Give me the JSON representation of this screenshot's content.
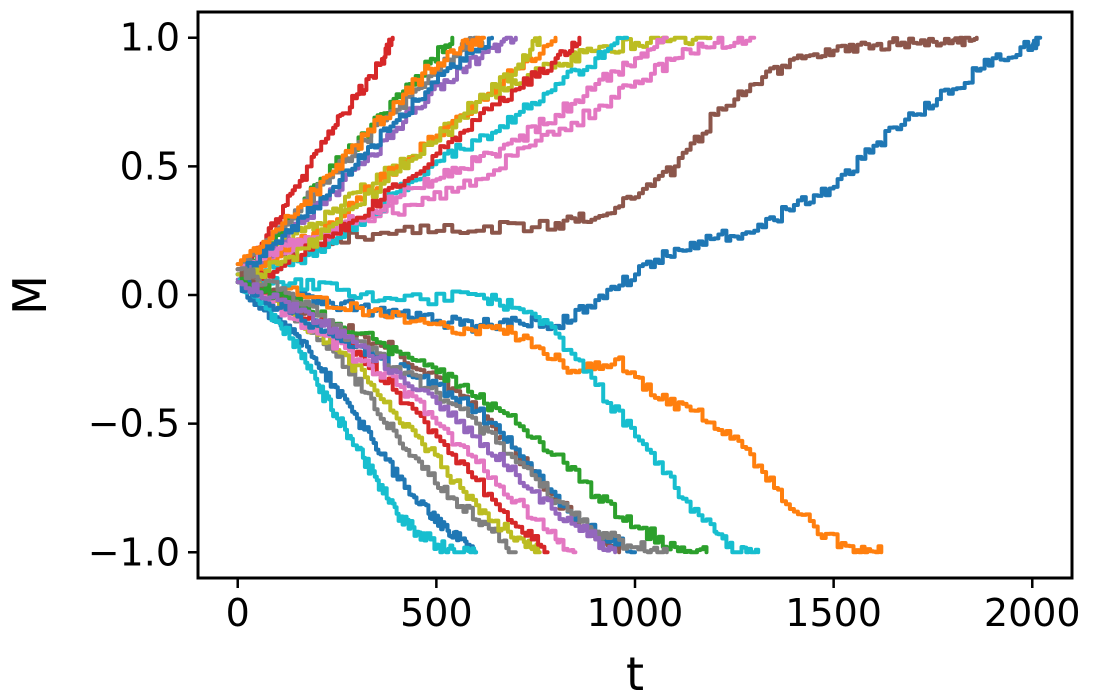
{
  "chart_data": {
    "type": "line",
    "title": "",
    "xlabel": "t",
    "ylabel": "M",
    "xlim": [
      -100,
      2100
    ],
    "ylim": [
      -1.1,
      1.1
    ],
    "xticks": [
      0,
      500,
      1000,
      1500,
      2000
    ],
    "xtick_labels": [
      "0",
      "500",
      "1000",
      "1500",
      "2000"
    ],
    "yticks": [
      -1.0,
      -0.5,
      0.0,
      0.5,
      1.0
    ],
    "ytick_labels": [
      "−1.0",
      "−0.5",
      "0.0",
      "0.5",
      "1.0"
    ],
    "grid": false,
    "legend": "none",
    "series": [
      {
        "color": "#1f77b4",
        "x": [
          0,
          100,
          200,
          300,
          400,
          500,
          600,
          700,
          800,
          900,
          1000,
          1100,
          1200,
          1300,
          1400,
          1500,
          1600,
          1700,
          1800,
          1900,
          2000,
          2020
        ],
        "y": [
          0.08,
          0.0,
          -0.02,
          -0.05,
          -0.08,
          -0.1,
          -0.12,
          -0.1,
          -0.12,
          -0.02,
          0.08,
          0.18,
          0.22,
          0.25,
          0.35,
          0.42,
          0.58,
          0.7,
          0.8,
          0.92,
          0.97,
          1.0
        ]
      },
      {
        "color": "#ff7f0e",
        "x": [
          0,
          150,
          300,
          450,
          550,
          650,
          750,
          850,
          950,
          1050,
          1150,
          1250,
          1350,
          1450,
          1550,
          1620
        ],
        "y": [
          0.05,
          0.0,
          -0.05,
          -0.1,
          -0.15,
          -0.12,
          -0.2,
          -0.3,
          -0.25,
          -0.4,
          -0.45,
          -0.55,
          -0.75,
          -0.9,
          -1.0,
          -1.0
        ]
      },
      {
        "color": "#8c564b",
        "x": [
          0,
          200,
          400,
          600,
          800,
          900,
          1000,
          1100,
          1200,
          1300,
          1400,
          1500,
          1600,
          1700,
          1800,
          1860
        ],
        "y": [
          0.1,
          0.2,
          0.25,
          0.25,
          0.28,
          0.3,
          0.38,
          0.5,
          0.7,
          0.82,
          0.92,
          0.95,
          0.97,
          0.98,
          0.99,
          1.0
        ]
      },
      {
        "color": "#17becf",
        "x": [
          0,
          100,
          250,
          400,
          600,
          700,
          800,
          900,
          1000,
          1100,
          1200,
          1250,
          1310
        ],
        "y": [
          0.05,
          0.05,
          0.02,
          -0.02,
          0.0,
          -0.05,
          -0.15,
          -0.35,
          -0.55,
          -0.75,
          -0.92,
          -1.0,
          -1.0
        ]
      },
      {
        "color": "#e377c2",
        "x": [
          0,
          150,
          300,
          450,
          600,
          750,
          900,
          1000,
          1100,
          1200,
          1300
        ],
        "y": [
          0.1,
          0.2,
          0.3,
          0.35,
          0.45,
          0.6,
          0.72,
          0.83,
          0.92,
          0.98,
          1.0
        ]
      },
      {
        "color": "#bcbd22",
        "x": [
          0,
          100,
          200,
          300,
          400,
          500,
          600,
          700,
          800,
          900,
          1000,
          1100,
          1190
        ],
        "y": [
          0.1,
          0.2,
          0.28,
          0.4,
          0.5,
          0.62,
          0.75,
          0.82,
          0.9,
          0.95,
          0.98,
          1.0,
          1.0
        ]
      },
      {
        "color": "#d62728",
        "x": [
          0,
          60,
          120,
          180,
          240,
          300,
          360,
          390
        ],
        "y": [
          0.05,
          0.2,
          0.35,
          0.5,
          0.65,
          0.78,
          0.9,
          1.0
        ]
      },
      {
        "color": "#2ca02c",
        "x": [
          0,
          80,
          160,
          240,
          320,
          400,
          480,
          540
        ],
        "y": [
          0.08,
          0.2,
          0.35,
          0.5,
          0.62,
          0.78,
          0.9,
          1.0
        ]
      },
      {
        "color": "#9467bd",
        "x": [
          0,
          80,
          160,
          240,
          320,
          400,
          480,
          560,
          640,
          700
        ],
        "y": [
          0.06,
          0.15,
          0.28,
          0.4,
          0.52,
          0.65,
          0.78,
          0.88,
          0.96,
          1.0
        ]
      },
      {
        "color": "#ff7f0e",
        "x": [
          0,
          100,
          200,
          300,
          400,
          500,
          600,
          700,
          800
        ],
        "y": [
          0.05,
          0.15,
          0.25,
          0.38,
          0.5,
          0.62,
          0.75,
          0.88,
          1.0
        ]
      },
      {
        "color": "#17becf",
        "x": [
          0,
          100,
          200,
          300,
          400,
          500,
          600,
          700,
          800,
          900,
          980
        ],
        "y": [
          0.05,
          0.1,
          0.18,
          0.28,
          0.4,
          0.52,
          0.6,
          0.7,
          0.82,
          0.92,
          1.0
        ]
      },
      {
        "color": "#e377c2",
        "x": [
          0,
          100,
          200,
          300,
          400,
          500,
          600,
          700,
          800,
          900,
          1000,
          1080
        ],
        "y": [
          0.1,
          0.18,
          0.22,
          0.3,
          0.38,
          0.45,
          0.52,
          0.6,
          0.7,
          0.82,
          0.92,
          1.0
        ]
      },
      {
        "color": "#7f7f7f",
        "x": [
          0,
          80,
          160,
          240,
          320,
          400,
          480,
          560,
          600
        ],
        "y": [
          0.12,
          0.22,
          0.35,
          0.48,
          0.6,
          0.72,
          0.85,
          0.95,
          1.0
        ]
      },
      {
        "color": "#1f77b4",
        "x": [
          0,
          80,
          160,
          240,
          320,
          400,
          480,
          560,
          640
        ],
        "y": [
          0.08,
          0.18,
          0.3,
          0.42,
          0.55,
          0.68,
          0.8,
          0.92,
          1.0
        ]
      },
      {
        "color": "#d62728",
        "x": [
          0,
          100,
          200,
          300,
          400,
          500,
          600,
          700,
          800,
          860
        ],
        "y": [
          0.05,
          0.1,
          0.2,
          0.3,
          0.42,
          0.55,
          0.68,
          0.8,
          0.92,
          1.0
        ]
      },
      {
        "color": "#bcbd22",
        "x": [
          0,
          100,
          200,
          300,
          400,
          500,
          600,
          700,
          760
        ],
        "y": [
          0.05,
          0.12,
          0.22,
          0.35,
          0.48,
          0.6,
          0.75,
          0.88,
          1.0
        ]
      },
      {
        "color": "#1f77b4",
        "x": [
          0,
          60,
          120,
          180,
          240,
          300,
          360,
          420,
          480,
          520,
          560,
          600
        ],
        "y": [
          0.05,
          -0.05,
          -0.12,
          -0.22,
          -0.35,
          -0.48,
          -0.62,
          -0.75,
          -0.85,
          -0.9,
          -0.95,
          -1.0
        ]
      },
      {
        "color": "#17becf",
        "x": [
          0,
          50,
          100,
          150,
          200,
          250,
          300,
          350,
          400,
          450,
          500,
          550,
          600
        ],
        "y": [
          0.05,
          -0.02,
          -0.1,
          -0.2,
          -0.35,
          -0.48,
          -0.6,
          -0.72,
          -0.85,
          -0.92,
          -0.97,
          -1.0,
          -1.0
        ]
      },
      {
        "color": "#7f7f7f",
        "x": [
          0,
          80,
          160,
          240,
          320,
          400,
          480,
          560,
          640,
          700
        ],
        "y": [
          0.1,
          0.0,
          -0.1,
          -0.22,
          -0.38,
          -0.55,
          -0.7,
          -0.82,
          -0.92,
          -1.0
        ]
      },
      {
        "color": "#bcbd22",
        "x": [
          0,
          80,
          160,
          240,
          320,
          400,
          480,
          560,
          640,
          720,
          760
        ],
        "y": [
          0.08,
          0.0,
          -0.1,
          -0.2,
          -0.32,
          -0.48,
          -0.6,
          -0.75,
          -0.88,
          -0.96,
          -1.0
        ]
      },
      {
        "color": "#d62728",
        "x": [
          0,
          100,
          200,
          300,
          400,
          500,
          600,
          700,
          780
        ],
        "y": [
          0.05,
          -0.02,
          -0.1,
          -0.22,
          -0.38,
          -0.55,
          -0.72,
          -0.9,
          -1.0
        ]
      },
      {
        "color": "#e377c2",
        "x": [
          0,
          100,
          200,
          300,
          400,
          500,
          600,
          700,
          800,
          850
        ],
        "y": [
          0.05,
          -0.05,
          -0.15,
          -0.25,
          -0.35,
          -0.5,
          -0.65,
          -0.8,
          -0.95,
          -1.0
        ]
      },
      {
        "color": "#8c564b",
        "x": [
          0,
          100,
          200,
          300,
          400,
          500,
          600,
          700,
          800,
          900,
          960
        ],
        "y": [
          0.1,
          0.0,
          -0.1,
          -0.15,
          -0.22,
          -0.32,
          -0.45,
          -0.62,
          -0.8,
          -0.95,
          -1.0
        ]
      },
      {
        "color": "#1f77b4",
        "x": [
          0,
          100,
          200,
          300,
          400,
          500,
          600,
          700,
          800,
          900,
          1000
        ],
        "y": [
          0.05,
          -0.05,
          -0.12,
          -0.2,
          -0.28,
          -0.35,
          -0.45,
          -0.6,
          -0.78,
          -0.92,
          -1.0
        ]
      },
      {
        "color": "#2ca02c",
        "x": [
          0,
          100,
          200,
          300,
          400,
          500,
          600,
          700,
          800,
          900,
          1000,
          1100,
          1180
        ],
        "y": [
          0.05,
          0.0,
          -0.08,
          -0.15,
          -0.22,
          -0.3,
          -0.4,
          -0.5,
          -0.62,
          -0.78,
          -0.9,
          -0.98,
          -1.0
        ]
      },
      {
        "color": "#7f7f7f",
        "x": [
          0,
          100,
          200,
          300,
          400,
          500,
          600,
          700,
          800,
          900,
          1000,
          1080
        ],
        "y": [
          0.1,
          0.02,
          -0.08,
          -0.18,
          -0.28,
          -0.38,
          -0.5,
          -0.65,
          -0.8,
          -0.92,
          -0.98,
          -1.0
        ]
      },
      {
        "color": "#ff7f0e",
        "x": [
          0,
          80,
          160,
          240,
          320,
          400,
          480,
          560,
          620
        ],
        "y": [
          0.12,
          0.22,
          0.35,
          0.48,
          0.62,
          0.75,
          0.88,
          0.96,
          1.0
        ]
      },
      {
        "color": "#9467bd",
        "x": [
          0,
          100,
          200,
          300,
          400,
          500,
          600,
          700,
          800,
          900,
          950
        ],
        "y": [
          0.05,
          -0.02,
          -0.1,
          -0.2,
          -0.3,
          -0.42,
          -0.55,
          -0.7,
          -0.85,
          -0.95,
          -1.0
        ]
      }
    ]
  }
}
